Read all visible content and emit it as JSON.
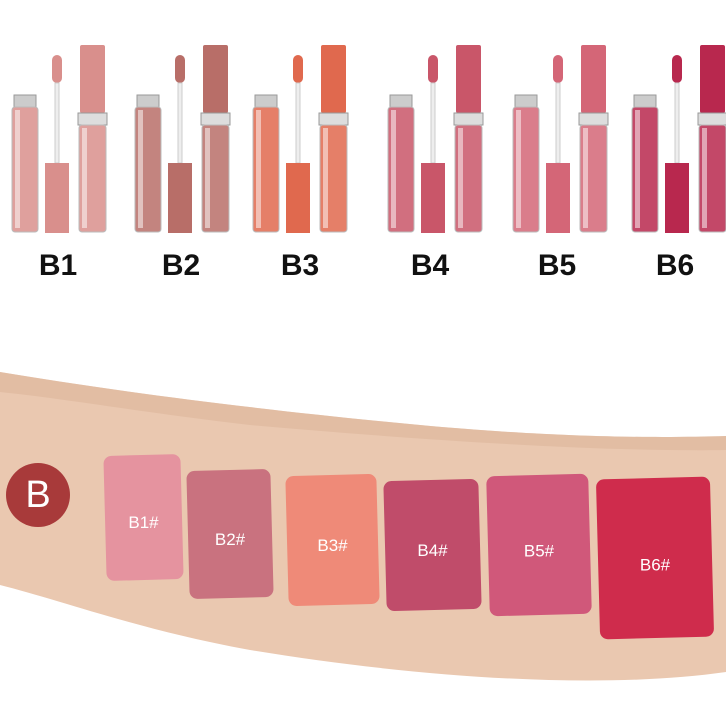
{
  "products": [
    {
      "label": "B1",
      "color": "#d98f8c"
    },
    {
      "label": "B2",
      "color": "#b86e68"
    },
    {
      "label": "B3",
      "color": "#e0694e"
    },
    {
      "label": "B4",
      "color": "#c95669"
    },
    {
      "label": "B5",
      "color": "#d46677"
    },
    {
      "label": "B6",
      "color": "#b8284e"
    }
  ],
  "badge": "B",
  "swatches": [
    {
      "label": "B1#",
      "color": "#e5939f"
    },
    {
      "label": "B2#",
      "color": "#c9727f"
    },
    {
      "label": "B3#",
      "color": "#ef8a78"
    },
    {
      "label": "B4#",
      "color": "#c04c6a"
    },
    {
      "label": "B5#",
      "color": "#d0587a"
    },
    {
      "label": "B6#",
      "color": "#cf2c4c"
    }
  ]
}
